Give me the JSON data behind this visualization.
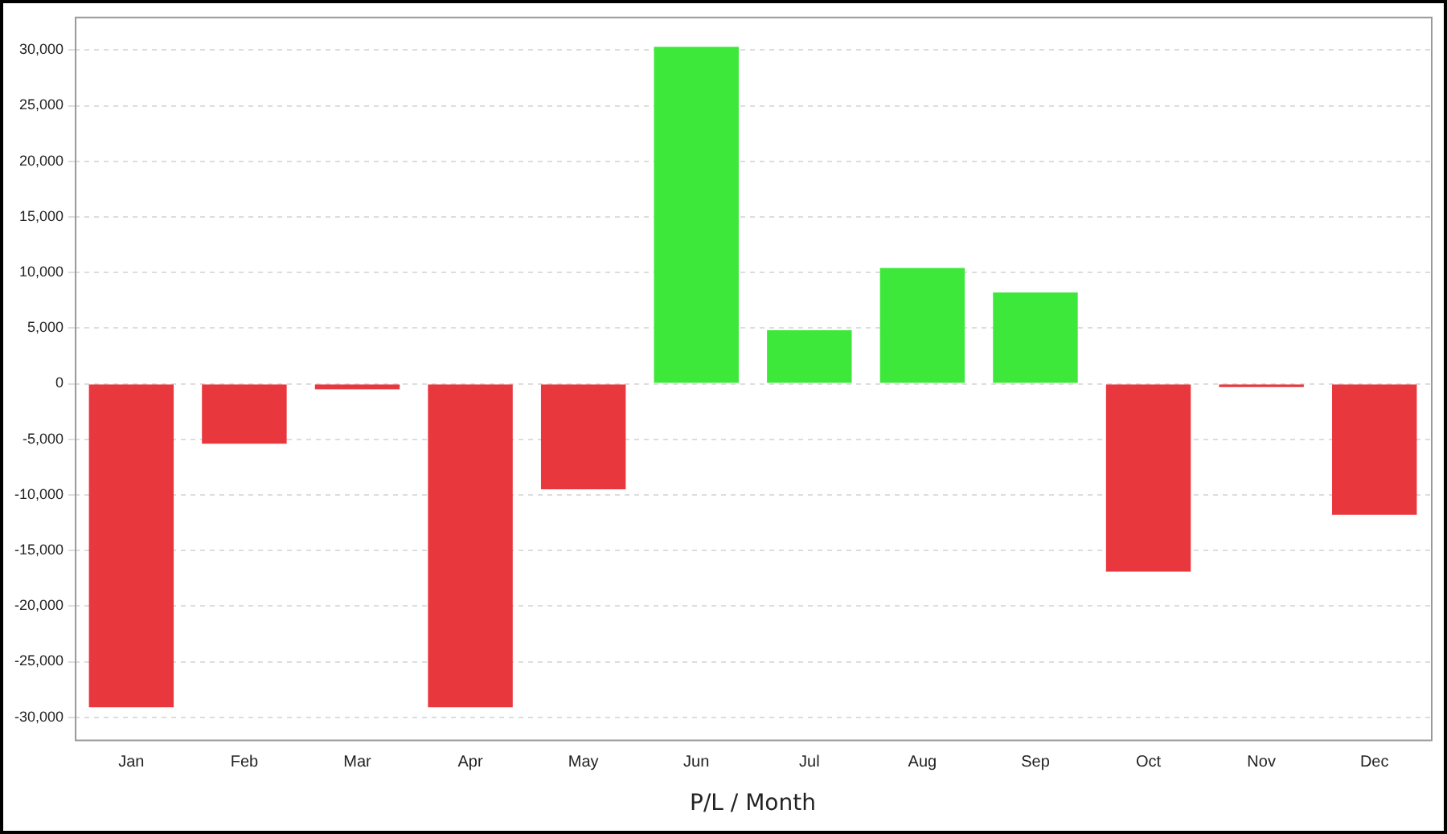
{
  "chart_data": {
    "type": "bar",
    "xlabel": "P/L / Month",
    "categories": [
      "Jan",
      "Feb",
      "Mar",
      "Apr",
      "May",
      "Jun",
      "Jul",
      "Aug",
      "Sep",
      "Oct",
      "Nov",
      "Dec"
    ],
    "values": [
      -29100,
      -5400,
      -500,
      -29100,
      -9500,
      30300,
      4800,
      10400,
      8200,
      -16900,
      -300,
      -11800
    ],
    "colors": [
      "#e8373d",
      "#e8373d",
      "#e8373d",
      "#e8373d",
      "#e8373d",
      "#3ee83b",
      "#3ee83b",
      "#3ee83b",
      "#3ee83b",
      "#e8373d",
      "#e8373d",
      "#e8373d"
    ],
    "ylim": [
      -32000,
      33000
    ],
    "yticks": [
      {
        "value": -30000,
        "label": "-30,000"
      },
      {
        "value": -25000,
        "label": "-25,000"
      },
      {
        "value": -20000,
        "label": "-20,000"
      },
      {
        "value": -15000,
        "label": "-15,000"
      },
      {
        "value": -10000,
        "label": "-10,000"
      },
      {
        "value": -5000,
        "label": "-5,000"
      },
      0,
      {
        "value": 5000,
        "label": "5,000"
      },
      {
        "value": 10000,
        "label": "10,000"
      },
      {
        "value": 15000,
        "label": "15,000"
      },
      {
        "value": 20000,
        "label": "20,000"
      },
      {
        "value": 25000,
        "label": "25,000"
      },
      {
        "value": 30000,
        "label": "30,000"
      }
    ],
    "grid": "y",
    "legend": false
  }
}
